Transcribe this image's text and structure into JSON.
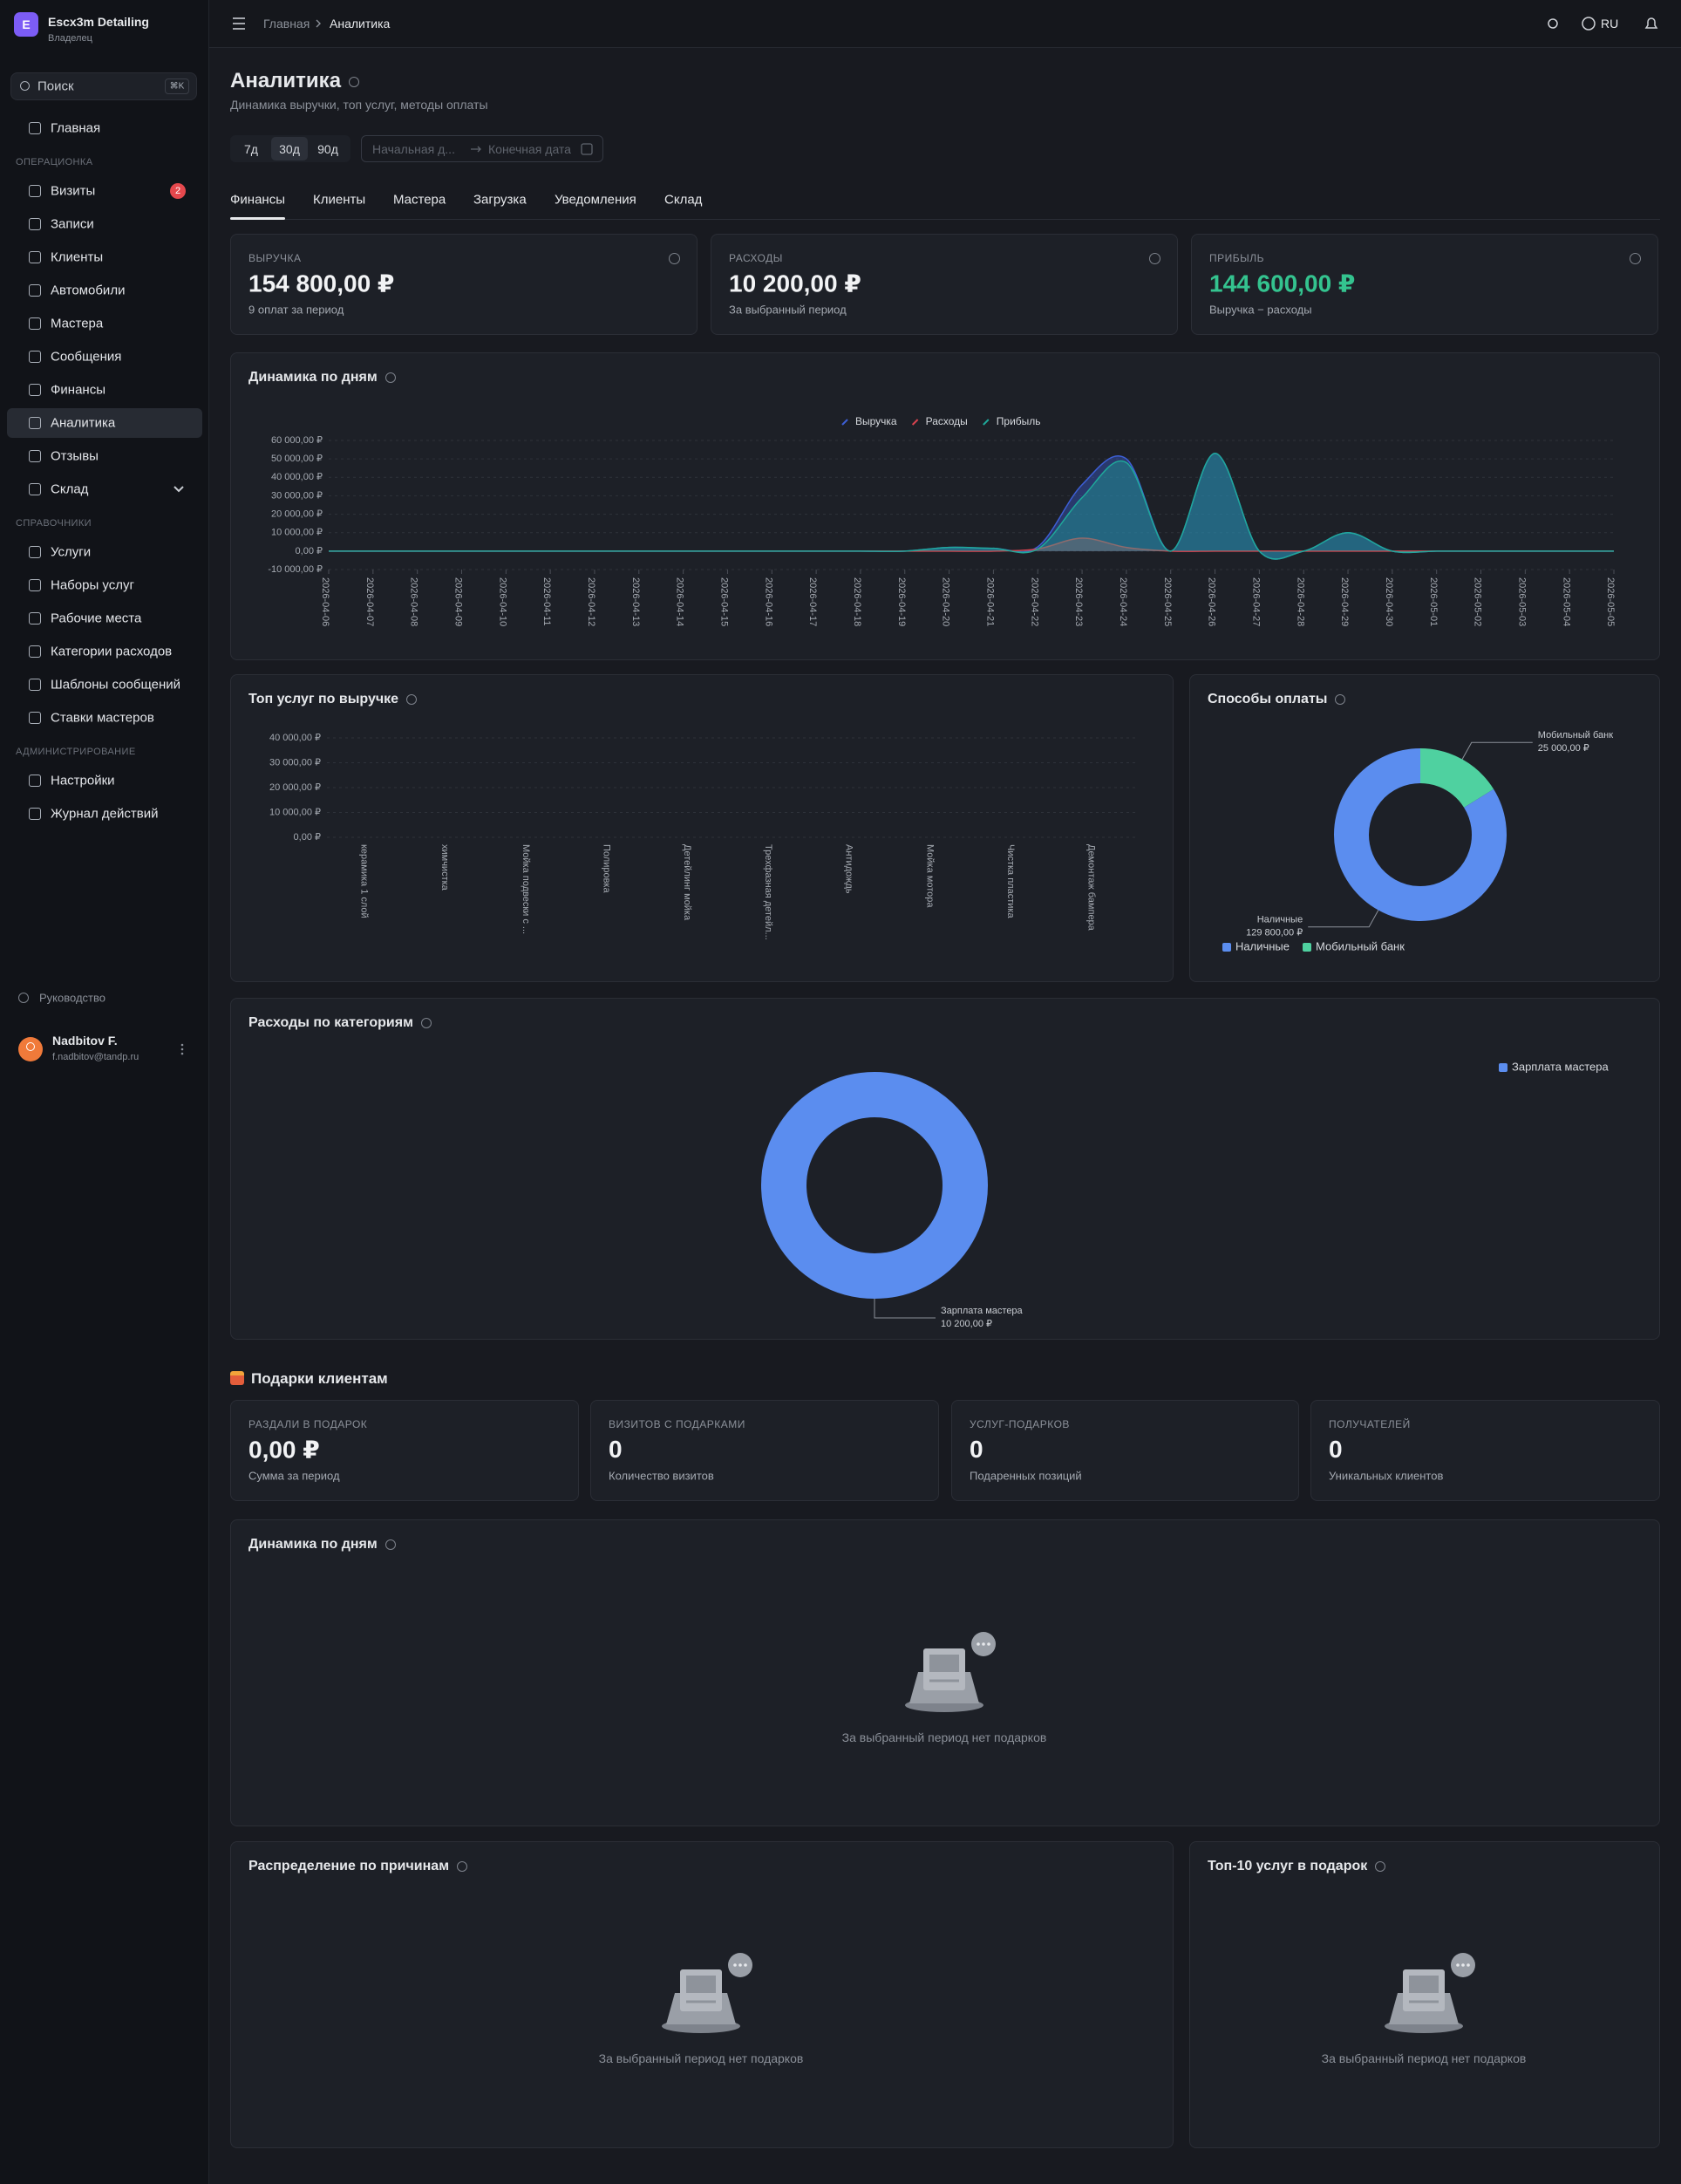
{
  "sidebar": {
    "logo": "E",
    "brand": "Escx3m Detailing",
    "role": "Владелец",
    "search": "Поиск",
    "shortcut": "⌘K",
    "active": "Аналитика",
    "nav": [
      {
        "label": "Главная"
      },
      {
        "section": "ОПЕРАЦИОНКА"
      },
      {
        "label": "Визиты",
        "badge": 2
      },
      {
        "label": "Записи"
      },
      {
        "label": "Клиенты"
      },
      {
        "label": "Автомобили"
      },
      {
        "label": "Мастера"
      },
      {
        "label": "Сообщения"
      },
      {
        "label": "Финансы"
      },
      {
        "label": "Аналитика"
      },
      {
        "label": "Отзывы"
      },
      {
        "label": "Склад",
        "expandable": true
      },
      {
        "section": "СПРАВОЧНИКИ"
      },
      {
        "label": "Услуги"
      },
      {
        "label": "Наборы услуг"
      },
      {
        "label": "Рабочие места"
      },
      {
        "label": "Категории расходов"
      },
      {
        "label": "Шаблоны сообщений"
      },
      {
        "label": "Ставки мастеров"
      },
      {
        "section": "АДМИНИСТРИРОВАНИЕ"
      },
      {
        "label": "Настройки"
      },
      {
        "label": "Журнал действий"
      }
    ],
    "help": "Руководство",
    "user": {
      "name": "Nadbitov F.",
      "email": "f.nadbitov@tandp.ru"
    }
  },
  "header": {
    "breadcrumb": [
      "Главная",
      "Аналитика"
    ],
    "lang": "RU"
  },
  "page": {
    "title": "Аналитика",
    "subtitle": "Динамика выручки, топ услуг, методы оплаты",
    "periods": [
      "7д",
      "30д",
      "90д"
    ],
    "active_period": "30д",
    "date_start": "Начальная д...",
    "date_end": "Конечная дата",
    "tabs": [
      "Финансы",
      "Клиенты",
      "Мастера",
      "Загрузка",
      "Уведомления",
      "Склад"
    ],
    "active_tab": "Финансы",
    "kpis": [
      {
        "label": "ВЫРУЧКА",
        "value": "154 800,00 ₽",
        "note": "9 оплат за период"
      },
      {
        "label": "РАСХОДЫ",
        "value": "10 200,00 ₽",
        "note": "За выбранный период"
      },
      {
        "label": "ПРИБЫЛЬ",
        "value": "144 600,00 ₽",
        "note": "Выручка − расходы",
        "color": "#34c38f"
      }
    ]
  },
  "chart_data": [
    {
      "type": "area",
      "title": "Динамика по дням",
      "x": [
        "2026-04-06",
        "2026-04-07",
        "2026-04-08",
        "2026-04-09",
        "2026-04-10",
        "2026-04-11",
        "2026-04-12",
        "2026-04-13",
        "2026-04-14",
        "2026-04-15",
        "2026-04-16",
        "2026-04-17",
        "2026-04-18",
        "2026-04-19",
        "2026-04-20",
        "2026-04-21",
        "2026-04-22",
        "2026-04-23",
        "2026-04-24",
        "2026-04-25",
        "2026-04-26",
        "2026-04-27",
        "2026-04-28",
        "2026-04-29",
        "2026-04-30",
        "2026-05-01",
        "2026-05-02",
        "2026-05-03",
        "2026-05-04",
        "2026-05-05"
      ],
      "series": [
        {
          "name": "Выручка",
          "color": "#3d5fd6",
          "values": [
            0,
            0,
            0,
            0,
            0,
            0,
            0,
            0,
            0,
            0,
            0,
            0,
            0,
            0,
            2000,
            1500,
            2300,
            36000,
            50000,
            0,
            53000,
            0,
            0,
            10000,
            0,
            0,
            0,
            0,
            0,
            0
          ]
        },
        {
          "name": "Расходы",
          "color": "#d9434f",
          "values": [
            0,
            0,
            0,
            0,
            0,
            0,
            0,
            0,
            0,
            0,
            0,
            0,
            0,
            0,
            0,
            0,
            1200,
            7000,
            2000,
            0,
            0,
            0,
            0,
            0,
            0,
            0,
            0,
            0,
            0,
            0
          ]
        },
        {
          "name": "Прибыль",
          "color": "#1fa89a",
          "values": [
            0,
            0,
            0,
            0,
            0,
            0,
            0,
            0,
            0,
            0,
            0,
            0,
            0,
            0,
            2000,
            1500,
            1100,
            29000,
            48000,
            0,
            53000,
            0,
            0,
            10000,
            0,
            0,
            0,
            0,
            0,
            0
          ]
        }
      ],
      "ylim": [
        -10000,
        60000
      ],
      "yticks": [
        {
          "value": -10000,
          "label": "-10 000,00 ₽"
        },
        {
          "value": 0,
          "label": "0,00 ₽"
        },
        {
          "value": 10000,
          "label": "10 000,00 ₽"
        },
        {
          "value": 20000,
          "label": "20 000,00 ₽"
        },
        {
          "value": 30000,
          "label": "30 000,00 ₽"
        },
        {
          "value": 40000,
          "label": "40 000,00 ₽"
        },
        {
          "value": 50000,
          "label": "50 000,00 ₽"
        },
        {
          "value": 60000,
          "label": "60 000,00 ₽"
        }
      ],
      "grid": true,
      "legend": "top"
    },
    {
      "type": "bar",
      "title": "Топ услуг по выручке",
      "categories": [
        "керамика 1 слой",
        "химчистка",
        "Мойка подвески с ...",
        "Полировка",
        "Детейлинг мойка",
        "Трехфазная детейл...",
        "Антидождь",
        "Мойка мотора",
        "Чистка пластика",
        "Демонтаж бампера"
      ],
      "ylim": [
        0,
        40000
      ],
      "yticks": [
        {
          "value": 0,
          "label": "0,00 ₽"
        },
        {
          "value": 10000,
          "label": "10 000,00 ₽"
        },
        {
          "value": 20000,
          "label": "20 000,00 ₽"
        },
        {
          "value": 30000,
          "label": "30 000,00 ₽"
        },
        {
          "value": 40000,
          "label": "40 000,00 ₽"
        }
      ],
      "grid": true
    },
    {
      "type": "donut",
      "title": "Способы оплаты",
      "categories": [
        "Наличные",
        "Мобильный банк"
      ],
      "values": [
        129800,
        25000
      ],
      "value_labels": [
        "129 800,00 ₽",
        "25 000,00 ₽"
      ],
      "colors": [
        "#5b8def",
        "#4fd1a0"
      ],
      "legend": "bottom-left"
    },
    {
      "type": "donut",
      "title": "Расходы по категориям",
      "categories": [
        "Зарплата мастера"
      ],
      "values": [
        10200
      ],
      "value_labels": [
        "10 200,00 ₽"
      ],
      "colors": [
        "#5b8def"
      ],
      "legend": "top-right"
    }
  ],
  "gifts": {
    "title": "Подарки клиентам",
    "kpis": [
      {
        "label": "РАЗДАЛИ В ПОДАРОК",
        "value": "0,00 ₽",
        "note": "Сумма за период"
      },
      {
        "label": "ВИЗИТОВ С ПОДАРКАМИ",
        "value": "0",
        "note": "Количество визитов"
      },
      {
        "label": "УСЛУГ-ПОДАРКОВ",
        "value": "0",
        "note": "Подаренных позиций"
      },
      {
        "label": "ПОЛУЧАТЕЛЕЙ",
        "value": "0",
        "note": "Уникальных клиентов"
      }
    ],
    "panels": [
      {
        "title": "Динамика по дням",
        "empty": "За выбранный период нет подарков"
      },
      {
        "title": "Распределение по причинам",
        "empty": "За выбранный период нет подарков"
      },
      {
        "title": "Топ-10 услуг в подарок",
        "empty": "За выбранный период нет подарков"
      }
    ]
  }
}
